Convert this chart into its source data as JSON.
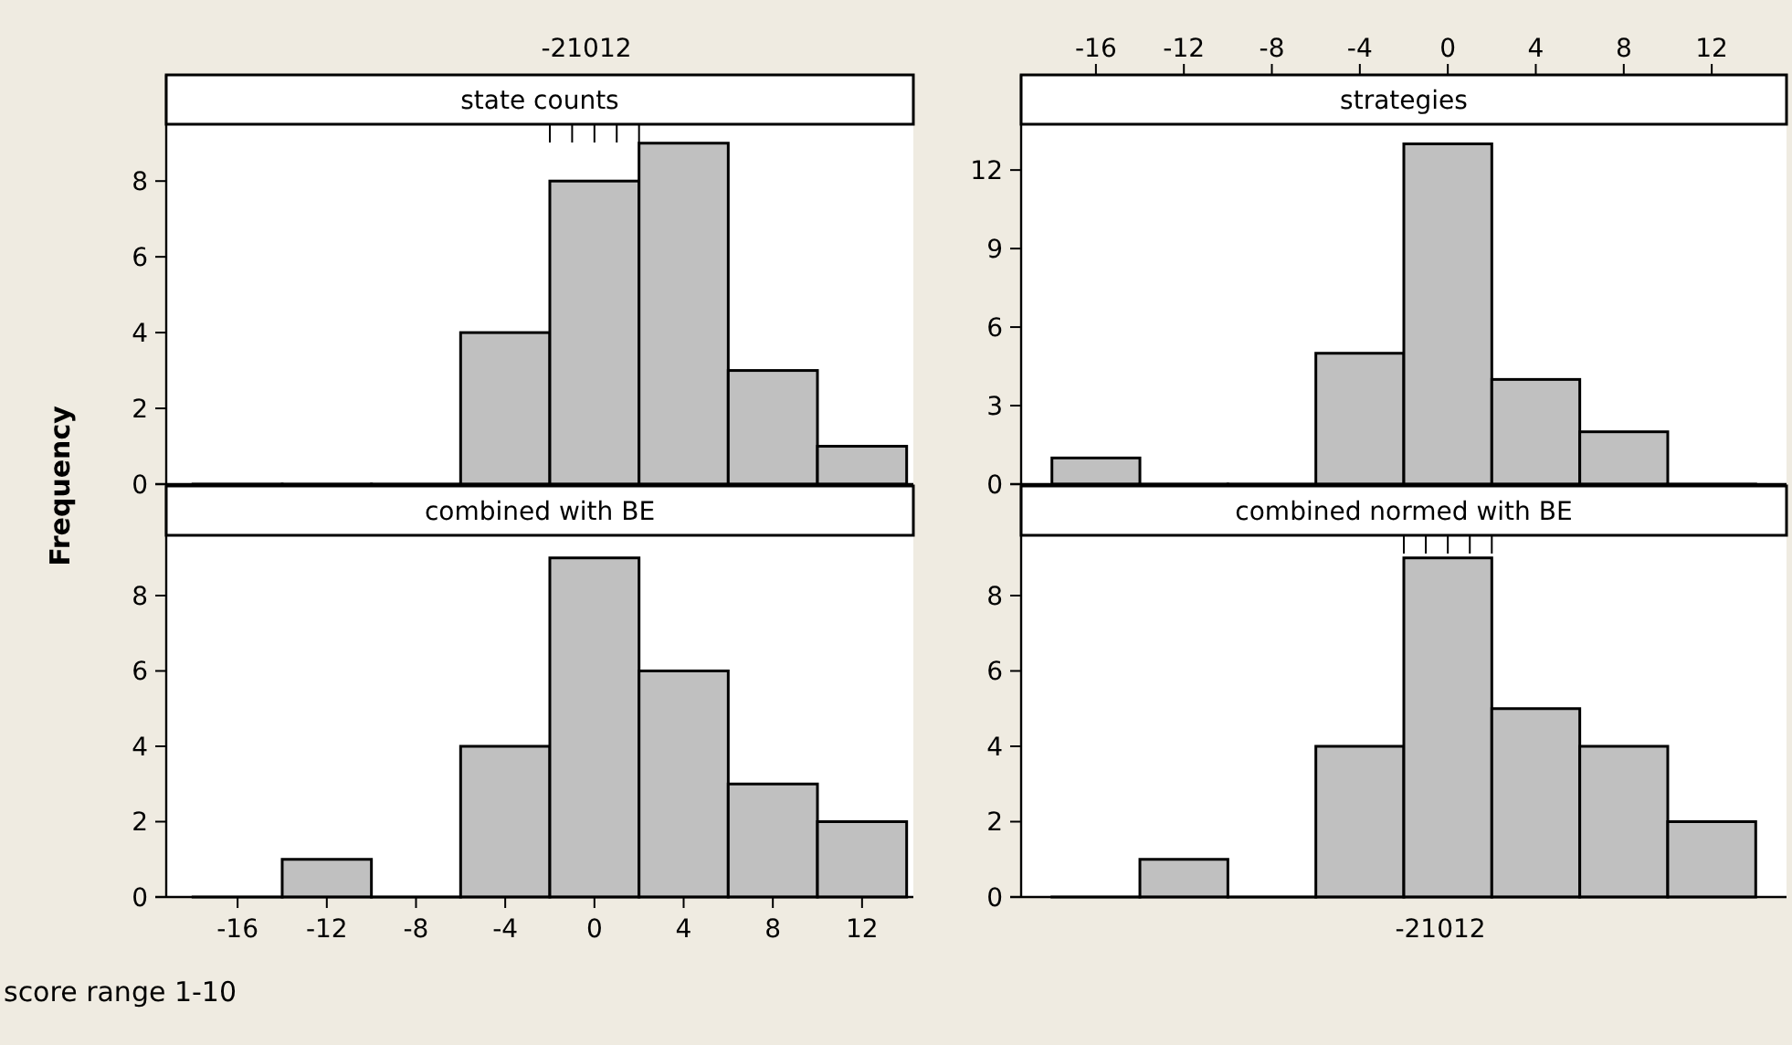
{
  "chart_data": [
    {
      "type": "histogram",
      "title": "state counts",
      "ylabel": "Frequency",
      "annotations": [
        "-21012"
      ],
      "bins": [
        -18,
        -14,
        -10,
        -6,
        -2,
        2,
        6,
        10,
        14
      ],
      "values": [
        0,
        0,
        0,
        4,
        8,
        9,
        3,
        1
      ],
      "color": "#c0c0c0",
      "xlim": [
        -19.2,
        14.3
      ],
      "xticks": [
        {
          "value": -2,
          "label": null
        },
        {
          "value": -1,
          "label": null
        },
        {
          "value": 0,
          "label": null
        },
        {
          "value": 1,
          "label": null
        },
        {
          "value": 2,
          "label": null
        }
      ],
      "ylim": [
        0,
        9.5
      ],
      "yticks": [
        0,
        2,
        4,
        6,
        8
      ],
      "tick_labels": "y"
    },
    {
      "type": "histogram",
      "title": "strategies",
      "bins": [
        -18,
        -14,
        -10,
        -6,
        -2,
        2,
        6,
        10,
        14
      ],
      "values": [
        1,
        0,
        0,
        5,
        13,
        4,
        2,
        0
      ],
      "color": "#c0c0c0",
      "xlim": [
        -19.4,
        15.4
      ],
      "xticks": [
        -16,
        -12,
        -8,
        -4,
        0,
        4,
        8,
        12
      ],
      "ylim": [
        0,
        13.75
      ],
      "yticks": [
        0,
        3,
        6,
        9,
        12
      ]
    },
    {
      "type": "histogram",
      "title": "combined with BE",
      "annotations": [
        "score range 1-10"
      ],
      "bins": [
        -18,
        -14,
        -10,
        -6,
        -2,
        2,
        6,
        10,
        14
      ],
      "values": [
        0,
        1,
        0,
        4,
        9,
        6,
        3,
        2
      ],
      "color": "#c0c0c0",
      "xlim": [
        -19.2,
        14.3
      ],
      "xticks": [
        -16,
        -12,
        -8,
        -4,
        0,
        4,
        8,
        12
      ],
      "ylim": [
        0,
        9.6
      ],
      "yticks": [
        0,
        2,
        4,
        6,
        8
      ]
    },
    {
      "type": "histogram",
      "title": "combined normed with BE",
      "annotations": [
        "-21012"
      ],
      "bins": [
        -18,
        -14,
        -10,
        -6,
        -2,
        2,
        6,
        10,
        14
      ],
      "values": [
        0,
        1,
        0,
        4,
        9,
        5,
        4,
        2
      ],
      "color": "#c0c0c0",
      "xlim": [
        -19.4,
        15.4
      ],
      "xticks": [
        {
          "value": -2,
          "label": null
        },
        {
          "value": -1,
          "label": null
        },
        {
          "value": 0,
          "label": null
        },
        {
          "value": 1,
          "label": null
        },
        {
          "value": 2,
          "label": null
        }
      ],
      "ylim": [
        0,
        9.6
      ],
      "yticks": [
        0,
        2,
        4,
        6,
        8
      ],
      "tick_labels": "y"
    }
  ]
}
